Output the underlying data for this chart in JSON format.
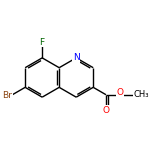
{
  "background_color": "#ffffff",
  "bond_color": "#000000",
  "atom_colors": {
    "N": "#0000ff",
    "O": "#ff0000",
    "Br": "#8B4513",
    "F": "#006400",
    "C": "#000000"
  },
  "figsize": [
    1.52,
    1.52
  ],
  "dpi": 100,
  "lw": 1.0,
  "fs": 6.5
}
